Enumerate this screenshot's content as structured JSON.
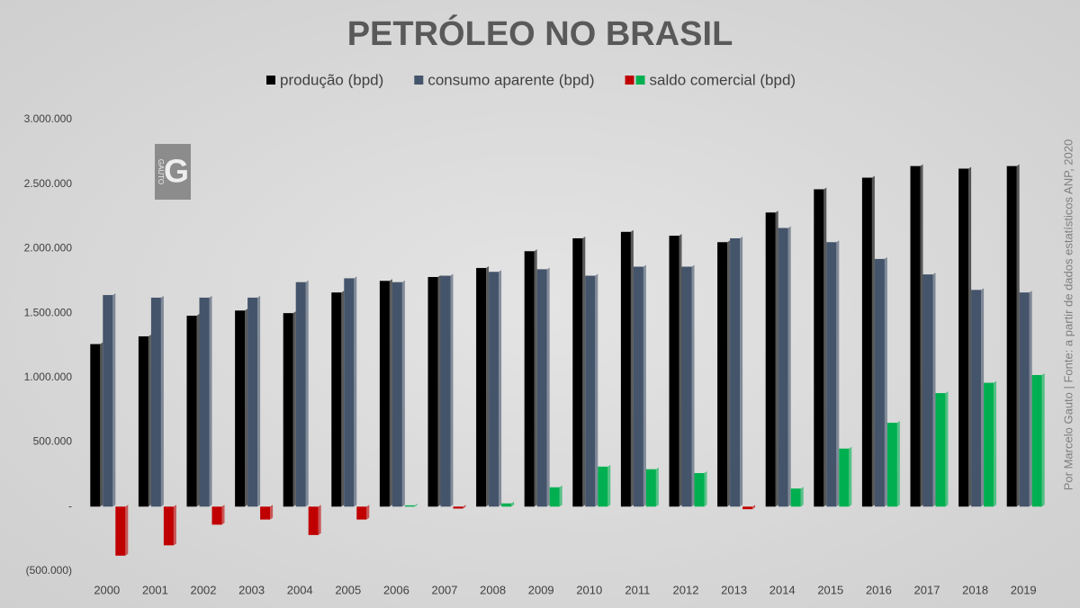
{
  "chart_data": {
    "type": "bar",
    "title": "PETRÓLEO NO BRASIL",
    "source": "Por Marcelo Gauto  |  Fonte: a partir de dados estatísticos ANP, 2020",
    "logo": {
      "name": "GAUTO",
      "letter": "G"
    },
    "categories": [
      "2000",
      "2001",
      "2002",
      "2003",
      "2004",
      "2005",
      "2006",
      "2007",
      "2008",
      "2009",
      "2010",
      "2011",
      "2012",
      "2013",
      "2014",
      "2015",
      "2016",
      "2017",
      "2018",
      "2019"
    ],
    "series": [
      {
        "name": "produção (bpd)",
        "color": "#000000",
        "values": [
          1260000,
          1320000,
          1480000,
          1520000,
          1500000,
          1660000,
          1750000,
          1780000,
          1850000,
          1980000,
          2080000,
          2130000,
          2100000,
          2050000,
          2280000,
          2460000,
          2550000,
          2640000,
          2620000,
          2640000
        ]
      },
      {
        "name": "consumo aparente (bpd)",
        "color": "#44546a",
        "values": [
          1640000,
          1620000,
          1620000,
          1620000,
          1740000,
          1770000,
          1740000,
          1790000,
          1820000,
          1840000,
          1790000,
          1860000,
          1860000,
          2080000,
          2160000,
          2050000,
          1920000,
          1800000,
          1680000,
          1660000
        ]
      },
      {
        "name": "saldo comercial (bpd)",
        "color": "#00b050",
        "negative_color": "#c00000",
        "values": [
          -380000,
          -300000,
          -140000,
          -100000,
          -220000,
          -100000,
          10000,
          -15000,
          25000,
          150000,
          310000,
          290000,
          260000,
          -20000,
          140000,
          450000,
          650000,
          880000,
          960000,
          1020000
        ]
      }
    ],
    "ylim": [
      -500000,
      3000000
    ],
    "yticks": [
      {
        "value": -500000,
        "label": "(500.000)"
      },
      {
        "value": 0,
        "label": "-"
      },
      {
        "value": 500000,
        "label": "500.000"
      },
      {
        "value": 1000000,
        "label": "1.000.000"
      },
      {
        "value": 1500000,
        "label": "1.500.000"
      },
      {
        "value": 2000000,
        "label": "2.000.000"
      },
      {
        "value": 2500000,
        "label": "2.500.000"
      },
      {
        "value": 3000000,
        "label": "3.000.000"
      }
    ],
    "grid": false,
    "legend": "top"
  }
}
